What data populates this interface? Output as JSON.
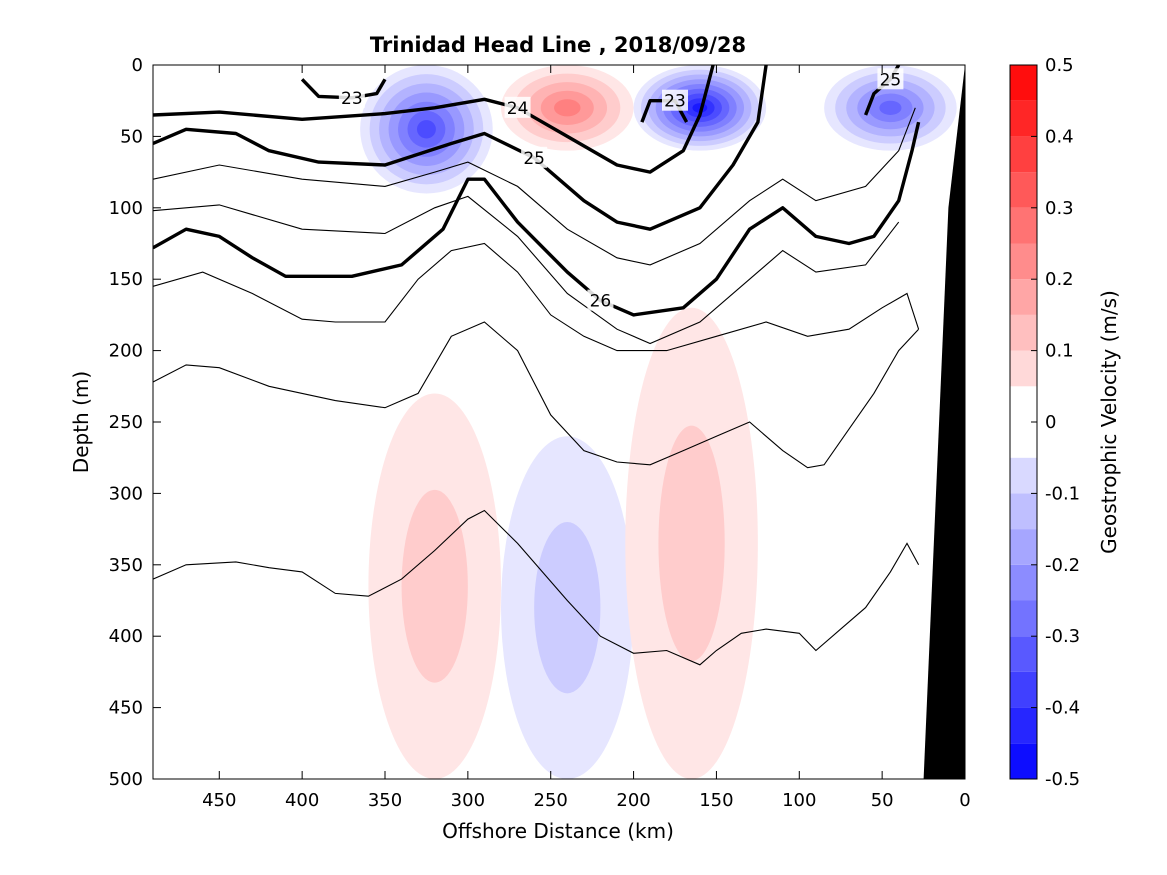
{
  "chart_data": {
    "type": "contour",
    "title": "Trinidad Head Line , 2018/09/28",
    "xlabel": "Offshore Distance (km)",
    "ylabel": "Depth (m)",
    "xlim": [
      490,
      0
    ],
    "ylim": [
      0,
      500
    ],
    "x_reversed": true,
    "y_reversed": true,
    "x_ticks": [
      450,
      400,
      350,
      300,
      250,
      200,
      150,
      100,
      50,
      0
    ],
    "y_ticks": [
      0,
      50,
      100,
      150,
      200,
      250,
      300,
      350,
      400,
      450,
      500
    ],
    "colorbar": {
      "label": "Geostrophic Velocity (m/s)",
      "range": [
        -0.5,
        0.5
      ],
      "ticks": [
        "0.5",
        "0.4",
        "0.3",
        "0.2",
        "0.1",
        "0",
        "-0.1",
        "-0.2",
        "-0.3",
        "-0.4",
        "-0.5"
      ],
      "levels": [
        -0.5,
        -0.45,
        -0.4,
        -0.35,
        -0.3,
        -0.25,
        -0.2,
        -0.15,
        -0.1,
        -0.05,
        0,
        0.05,
        0.1,
        0.15,
        0.2,
        0.25,
        0.3,
        0.35,
        0.4,
        0.45,
        0.5
      ],
      "positive_color": "#ff0000",
      "negative_color": "#0000ff",
      "zero_color": "#ffffff"
    },
    "velocity_features": [
      {
        "sign": "negative",
        "x_center": 160,
        "depth_top": 0,
        "depth_bottom": 60,
        "peak": -0.45
      },
      {
        "sign": "negative",
        "x_center": 325,
        "depth_top": 0,
        "depth_bottom": 90,
        "peak": -0.35
      },
      {
        "sign": "positive",
        "x_center": 240,
        "depth_top": 0,
        "depth_bottom": 60,
        "peak": 0.25
      },
      {
        "sign": "negative",
        "x_center": 45,
        "depth_top": 0,
        "depth_bottom": 60,
        "peak": -0.3
      },
      {
        "sign": "negative",
        "x_center": 240,
        "depth_top": 260,
        "depth_bottom": 500,
        "peak": -0.12
      },
      {
        "sign": "positive",
        "x_center": 320,
        "depth_top": 230,
        "depth_bottom": 500,
        "peak": 0.1
      },
      {
        "sign": "positive",
        "x_center": 165,
        "depth_top": 170,
        "depth_bottom": 500,
        "peak": 0.1
      }
    ],
    "isopycnals": [
      {
        "level": 23,
        "label": "23",
        "points": [
          [
            400,
            10
          ],
          [
            390,
            22
          ],
          [
            370,
            23
          ],
          [
            355,
            20
          ],
          [
            350,
            10
          ]
        ]
      },
      {
        "level": 23,
        "label": "23",
        "points": [
          [
            195,
            40
          ],
          [
            190,
            25
          ],
          [
            175,
            25
          ],
          [
            168,
            40
          ]
        ]
      },
      {
        "level": 24,
        "label": "24",
        "points": [
          [
            490,
            35
          ],
          [
            450,
            33
          ],
          [
            400,
            38
          ],
          [
            350,
            34
          ],
          [
            320,
            30
          ],
          [
            290,
            24
          ],
          [
            270,
            30
          ],
          [
            240,
            50
          ],
          [
            210,
            70
          ],
          [
            190,
            75
          ],
          [
            170,
            60
          ],
          [
            160,
            35
          ],
          [
            152,
            0
          ]
        ]
      },
      {
        "level": 25,
        "label": "25",
        "points": [
          [
            490,
            55
          ],
          [
            470,
            45
          ],
          [
            440,
            48
          ],
          [
            420,
            60
          ],
          [
            390,
            68
          ],
          [
            350,
            70
          ],
          [
            310,
            55
          ],
          [
            290,
            48
          ],
          [
            260,
            65
          ],
          [
            230,
            95
          ],
          [
            210,
            110
          ],
          [
            190,
            115
          ],
          [
            160,
            100
          ],
          [
            140,
            70
          ],
          [
            125,
            40
          ],
          [
            120,
            0
          ]
        ]
      },
      {
        "level": 25,
        "label": "25",
        "points": [
          [
            60,
            35
          ],
          [
            55,
            20
          ],
          [
            45,
            10
          ],
          [
            40,
            0
          ]
        ]
      },
      {
        "level": 26,
        "label": "26",
        "points": [
          [
            490,
            128
          ],
          [
            470,
            115
          ],
          [
            450,
            120
          ],
          [
            430,
            135
          ],
          [
            410,
            148
          ],
          [
            370,
            148
          ],
          [
            340,
            140
          ],
          [
            315,
            115
          ],
          [
            300,
            80
          ],
          [
            290,
            80
          ],
          [
            270,
            110
          ],
          [
            240,
            145
          ],
          [
            220,
            165
          ],
          [
            200,
            175
          ],
          [
            170,
            170
          ],
          [
            150,
            150
          ],
          [
            130,
            115
          ],
          [
            110,
            100
          ],
          [
            90,
            120
          ],
          [
            70,
            125
          ],
          [
            55,
            120
          ],
          [
            40,
            95
          ],
          [
            32,
            60
          ],
          [
            28,
            40
          ]
        ]
      }
    ]
  }
}
